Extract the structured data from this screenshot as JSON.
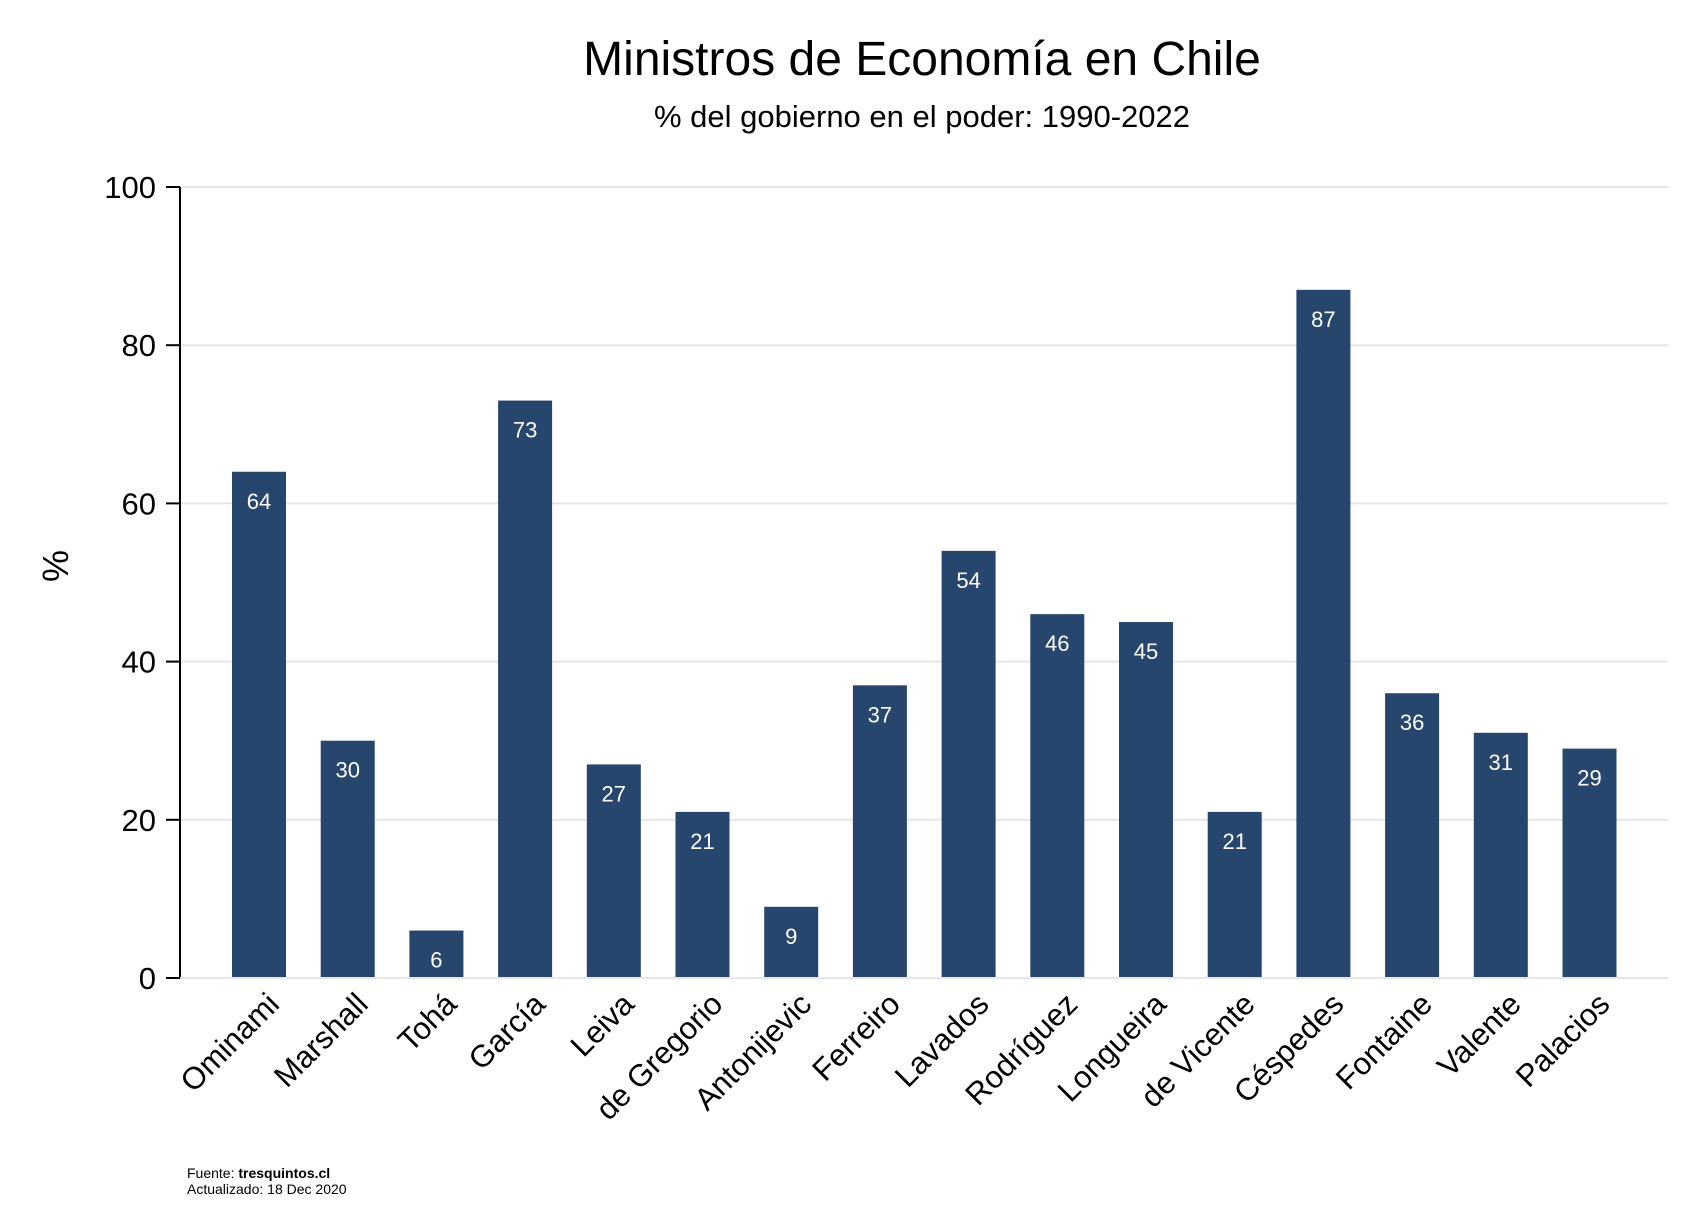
{
  "chart_data": {
    "type": "bar",
    "title": "Ministros de Economía en Chile",
    "subtitle": "% del gobierno en el poder: 1990-2022",
    "ylabel": "%",
    "xlabel": "",
    "ylim": [
      0,
      100
    ],
    "yticks": [
      0,
      20,
      40,
      60,
      80,
      100
    ],
    "grid": true,
    "bar_color": "#26466d",
    "categories": [
      "Ominami",
      "Marshall",
      "Tohá",
      "García",
      "Leiva",
      "de Gregorio",
      "Antonijevic",
      "Ferreiro",
      "Lavados",
      "Rodríguez",
      "Longueira",
      "de Vicente",
      "Céspedes",
      "Fontaine",
      "Valente",
      "Palacios"
    ],
    "values": [
      64,
      30,
      6,
      73,
      27,
      21,
      9,
      37,
      54,
      46,
      45,
      21,
      87,
      36,
      31,
      29
    ],
    "labels": [
      "64",
      "30",
      "6",
      "73",
      "27",
      "21",
      "9",
      "37",
      "54",
      "46",
      "45",
      "21",
      "87",
      "36",
      "31",
      "29"
    ]
  },
  "footer": {
    "source_prefix": "Fuente: ",
    "source_name": "tresquintos.cl",
    "updated": "Actualizado: 18 Dec 2020"
  }
}
